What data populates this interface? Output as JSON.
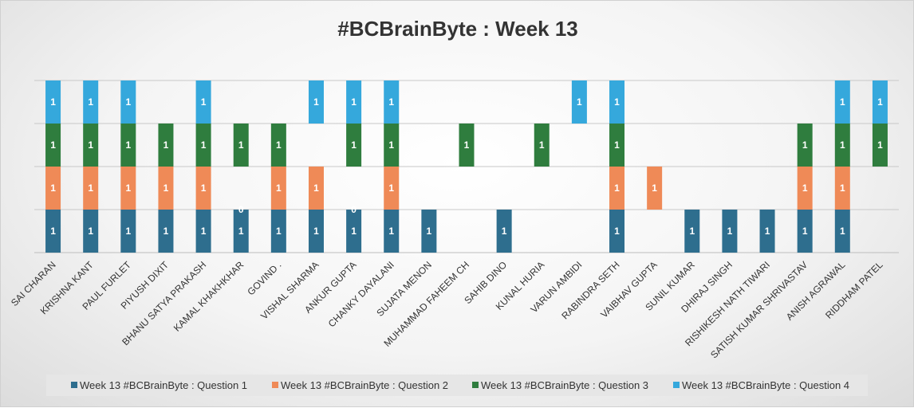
{
  "chart_data": {
    "type": "bar",
    "stacked": true,
    "title": "#BCBrainByte : Week 13",
    "xlabel": "",
    "ylabel": "",
    "ylim": [
      0,
      4
    ],
    "grid": true,
    "legend_position": "bottom",
    "categories": [
      "SAI CHARAN",
      "KRISHNA KANT",
      "PAUL FURLET",
      "PIYUSH DIXIT",
      "BHANU SATYA PRAKASH",
      "KAMAL KHAKHKHAR",
      "GOVIND .",
      "VISHAL SHARMA",
      "ANKUR GUPTA",
      "CHANKY DAYALANI",
      "SUJATA MENON",
      "MUHAMMAD FAHEEM CH",
      "SAHIB DINO",
      "KUNAL HURIA",
      "VARUN AMBIDI",
      "RABINDRA SETH",
      "VAIBHAV GUPTA",
      "SUNIL KUMAR",
      "DHIRAJ SINGH",
      "RISHIKESH NATH TIWARI",
      "SATISH KUMAR SHRIVASTAV",
      "ANISH AGRAWAL",
      "RIDDHAM PATEL"
    ],
    "series": [
      {
        "name": "Week 13 #BCBrainByte : Question 1",
        "color": "#2e6e8e",
        "values": [
          1,
          1,
          1,
          1,
          1,
          1,
          1,
          1,
          1,
          1,
          1,
          null,
          1,
          null,
          null,
          1,
          null,
          1,
          1,
          1,
          1,
          1,
          null
        ]
      },
      {
        "name": "Week 13 #BCBrainByte : Question 2",
        "color": "#ef8a57",
        "values": [
          1,
          1,
          1,
          1,
          1,
          0,
          1,
          1,
          0,
          1,
          null,
          null,
          null,
          null,
          null,
          1,
          1,
          null,
          null,
          null,
          1,
          1,
          null
        ]
      },
      {
        "name": "Week 13 #BCBrainByte : Question 3",
        "color": "#2f7d3e",
        "values": [
          1,
          1,
          1,
          1,
          1,
          1,
          1,
          null,
          1,
          1,
          null,
          1,
          null,
          1,
          null,
          1,
          null,
          null,
          null,
          null,
          1,
          1,
          1
        ]
      },
      {
        "name": "Week 13 #BCBrainByte : Question 4",
        "color": "#35a8dc",
        "values": [
          1,
          1,
          1,
          null,
          1,
          null,
          null,
          1,
          1,
          1,
          null,
          null,
          null,
          null,
          1,
          1,
          null,
          null,
          null,
          null,
          null,
          1,
          1
        ]
      }
    ]
  }
}
